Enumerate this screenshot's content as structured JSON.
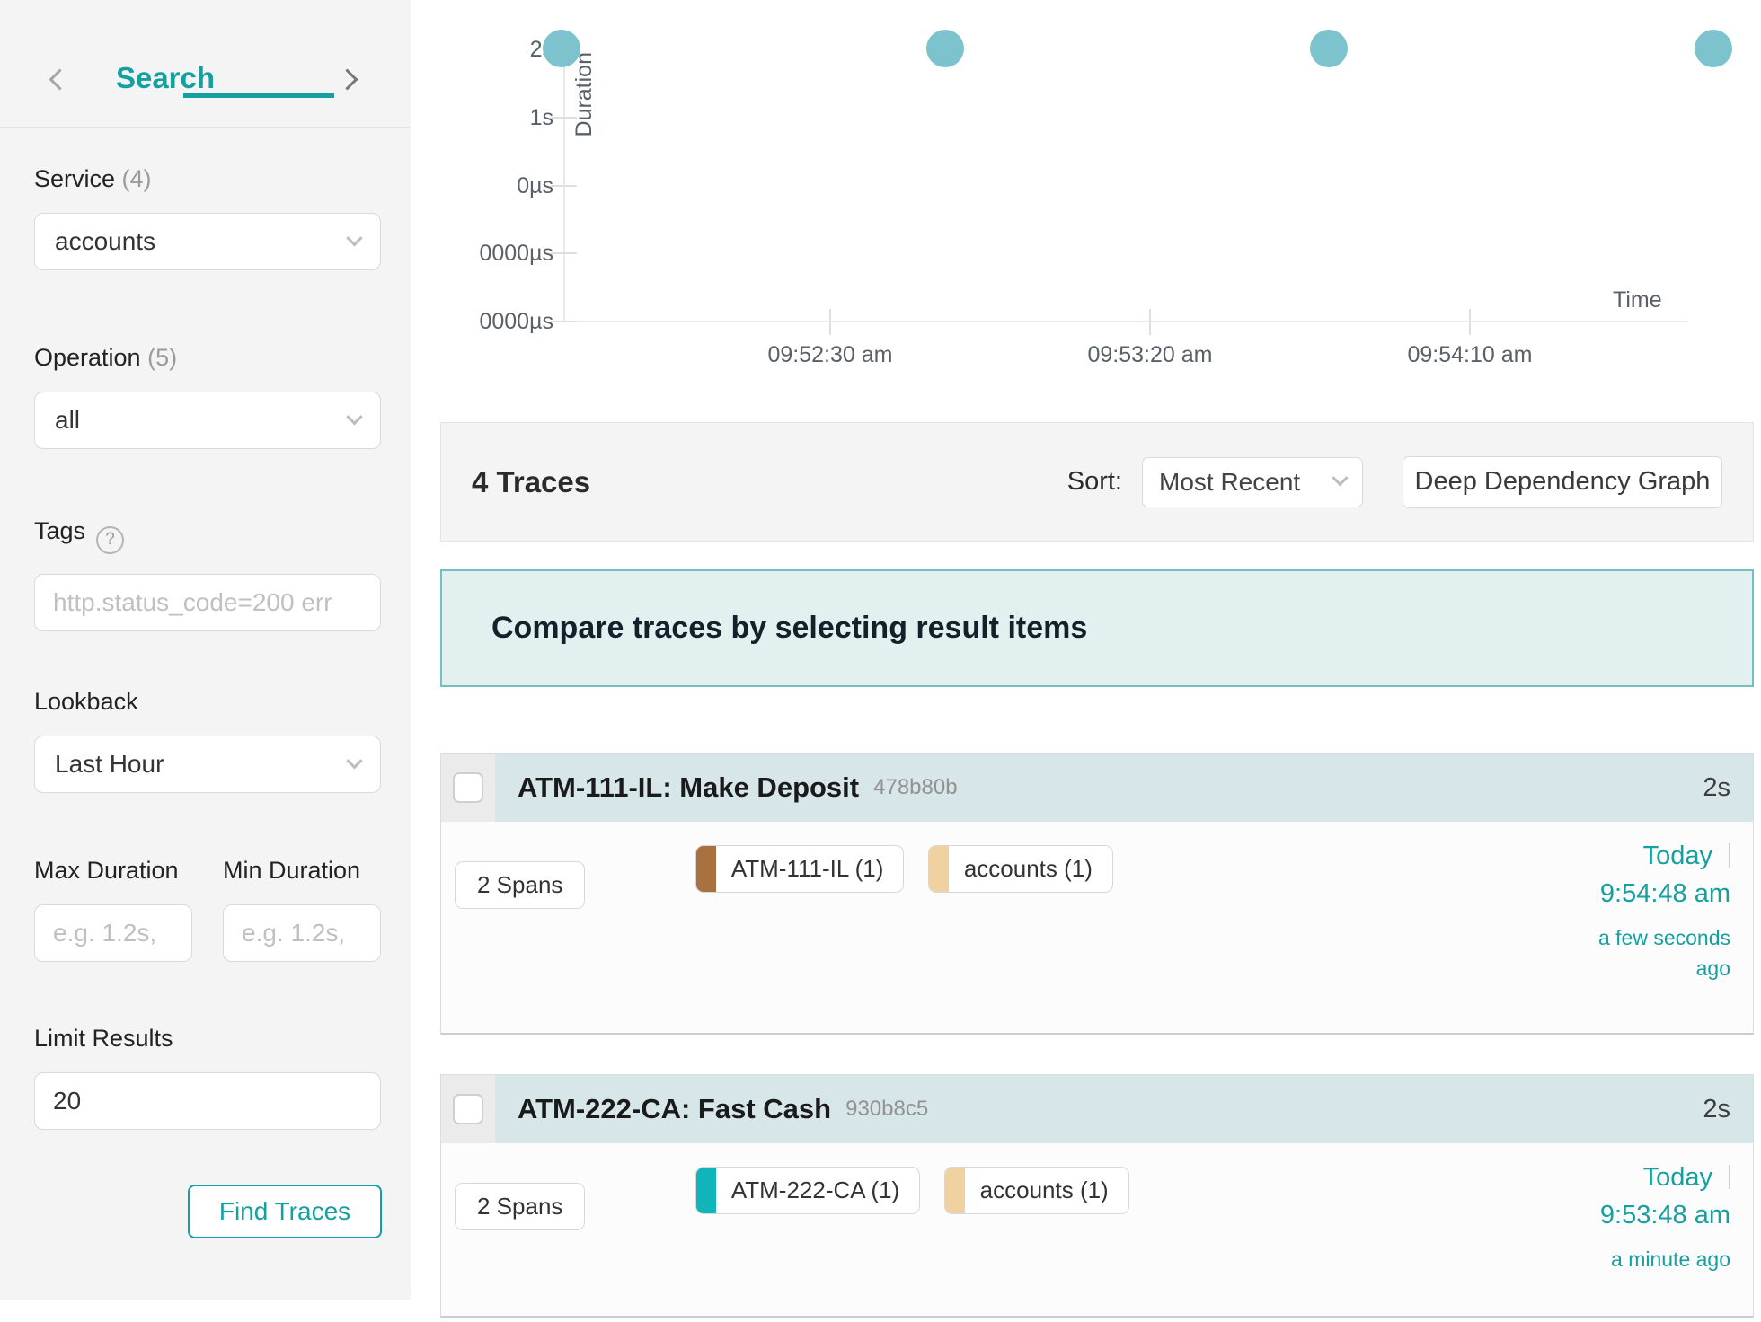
{
  "colors": {
    "accent": "#14a0a0",
    "dot": "#7cc3cd",
    "banner_bg": "#e2f1f0",
    "banner_border": "#74bfbf",
    "card_header_bg": "#d7e6e9"
  },
  "icons": {
    "prev_page": "chevron-left",
    "next_page": "chevron-right",
    "help": "?",
    "select_caret": "chevron-down"
  },
  "sidebar": {
    "tab_label": "Search",
    "service": {
      "label": "Service",
      "count": "(4)",
      "value": "accounts"
    },
    "operation": {
      "label": "Operation",
      "count": "(5)",
      "value": "all"
    },
    "tags": {
      "label": "Tags",
      "placeholder": "http.status_code=200 err"
    },
    "lookback": {
      "label": "Lookback",
      "value": "Last Hour"
    },
    "max_duration": {
      "label": "Max Duration",
      "placeholder": "e.g. 1.2s,"
    },
    "min_duration": {
      "label": "Min Duration",
      "placeholder": "e.g. 1.2s,"
    },
    "limit": {
      "label": "Limit Results",
      "value": "20"
    },
    "find_button": "Find Traces"
  },
  "chart_data": {
    "type": "scatter",
    "title": "",
    "xlabel": "Time",
    "ylabel": "Duration",
    "y_axis": {
      "ticks": [
        "2s",
        "1s",
        "0µs",
        "0000µs",
        "0000µs"
      ]
    },
    "x_axis": {
      "ticks": [
        "09:52:30 am",
        "09:53:20 am",
        "09:54:10 am"
      ],
      "tick_interval_s": 50
    },
    "points": [
      {
        "time": "09:51:48 am",
        "duration": "2s"
      },
      {
        "time": "09:52:48 am",
        "duration": "2s"
      },
      {
        "time": "09:53:48 am",
        "duration": "2s"
      },
      {
        "time": "09:54:48 am",
        "duration": "2s"
      }
    ],
    "legend": "none",
    "grid": "off"
  },
  "results_bar": {
    "count_label": "4 Traces",
    "sort_label": "Sort:",
    "sort_value": "Most Recent",
    "ddg_button": "Deep Dependency Graph"
  },
  "banner": {
    "text": "Compare traces by selecting result items"
  },
  "traces": [
    {
      "title": "ATM-111-IL: Make Deposit",
      "id": "478b80b",
      "duration": "2s",
      "spans": "2 Spans",
      "services": [
        {
          "name": "ATM-111-IL (1)",
          "color": "#a9713f"
        },
        {
          "name": "accounts (1)",
          "color": "#efd2a0"
        }
      ],
      "date": "Today",
      "time": "9:54:48 am",
      "ago": "a few seconds ago"
    },
    {
      "title": "ATM-222-CA: Fast Cash",
      "id": "930b8c5",
      "duration": "2s",
      "spans": "2 Spans",
      "services": [
        {
          "name": "ATM-222-CA (1)",
          "color": "#10b5b9"
        },
        {
          "name": "accounts (1)",
          "color": "#efd2a0"
        }
      ],
      "date": "Today",
      "time": "9:53:48 am",
      "ago": "a minute ago"
    }
  ]
}
